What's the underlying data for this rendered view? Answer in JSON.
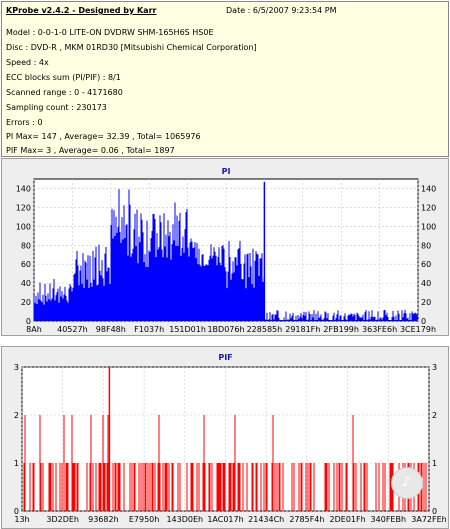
{
  "info": {
    "title": "KProbe v2.4.2 - Designed by Karr",
    "date": "Date : 6/5/2007 9:23:54 PM",
    "model": "Model : 0-0-1-0 LITE-ON DVDRW SHM-165H6S HS0E",
    "disc": "Disc : DVD-R , MKM 01RD30  [Mitsubishi Chemical Corporation]",
    "speed": "Speed : 4x",
    "ecc": "ECC blocks sum (PI/PIF) : 8/1",
    "range": "Scanned range : 0 - 4171680",
    "sampling": "Sampling count : 230173",
    "errors": "Errors : 0",
    "pi_summary": "PI Max= 147 , Average= 32.39 , Total= 1065976",
    "pif_summary": "PIF Max= 3 , Average= 0.06 , Total= 1897"
  },
  "chart_data": [
    {
      "type": "bar",
      "title": "PI",
      "ylim": [
        0,
        150
      ],
      "yticks": [
        0,
        20,
        40,
        60,
        80,
        100,
        120,
        140
      ],
      "xticks": [
        "8Ah",
        "40527h",
        "98F48h",
        "F1037h",
        "151D01h",
        "1BD076h",
        "228585h",
        "29181Fh",
        "2FB199h",
        "363FE6h",
        "3CE179h"
      ],
      "grid": true,
      "colors": {
        "bars": "#0000ff",
        "peak_marker": "#0000ff"
      },
      "peak": {
        "value": 147,
        "position": "228585h"
      },
      "profile": [
        {
          "segment": 0,
          "from": "8Ah",
          "to": "40527h",
          "typical": 28,
          "max": 45
        },
        {
          "segment": 1,
          "from": "40527h",
          "to": "98F48h",
          "typical": 55,
          "max": 85
        },
        {
          "segment": 2,
          "from": "98F48h",
          "to": "F1037h",
          "typical": 90,
          "max": 140
        },
        {
          "segment": 3,
          "from": "F1037h",
          "to": "151D01h",
          "typical": 88,
          "max": 128
        },
        {
          "segment": 4,
          "from": "151D01h",
          "to": "1BD076h",
          "typical": 70,
          "max": 90
        },
        {
          "segment": 5,
          "from": "1BD076h",
          "to": "228585h",
          "typical": 55,
          "max": 85
        },
        {
          "segment": 6,
          "from": "228585h",
          "to": "3CE179h",
          "typical": 4,
          "max": 12
        }
      ]
    },
    {
      "type": "bar",
      "title": "PIF",
      "ylim": [
        0,
        3
      ],
      "yticks": [
        0,
        1,
        2,
        3
      ],
      "xticks": [
        "13h",
        "3D2DEh",
        "93682h",
        "E7950h",
        "143D0Eh",
        "1AC017h",
        "21434Ch",
        "2785F4h",
        "2DE01Fh",
        "340FEBh",
        "3A72FEh"
      ],
      "grid": true,
      "colors": {
        "bars": "#ff0000"
      },
      "max": 3,
      "levels": [
        0,
        1,
        2,
        3
      ]
    }
  ],
  "logo_glyph": "♪"
}
